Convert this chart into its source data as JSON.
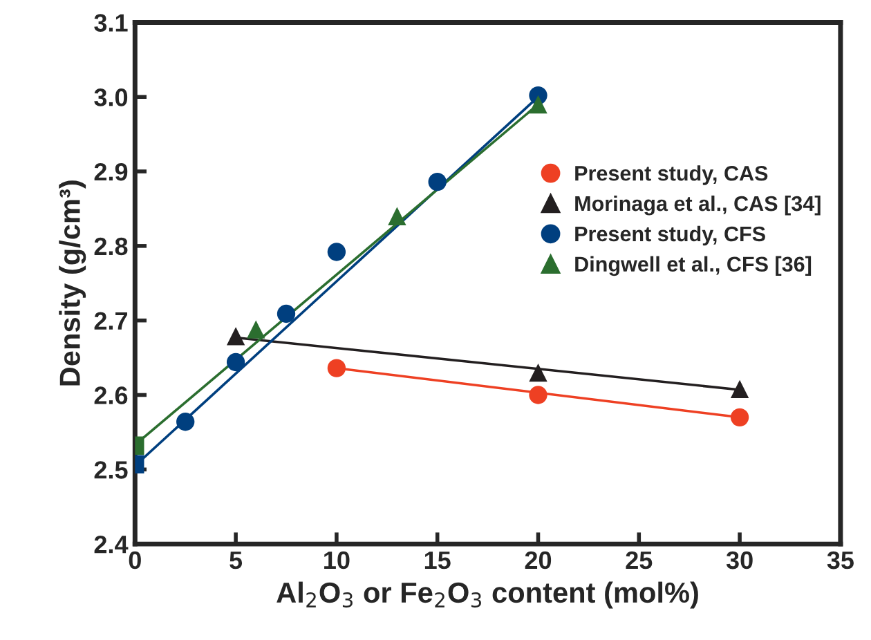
{
  "chart_data": {
    "type": "scatter",
    "xlabel": "Al$_{2}$O$_{3}$ or Fe$_{2}$O$_{3}$ content (mol%)",
    "ylabel": "Density (g/cm³)",
    "xlim": [
      0,
      35
    ],
    "xticks": [
      0,
      5,
      10,
      15,
      20,
      25,
      30,
      35
    ],
    "ylim": [
      2.4,
      3.1
    ],
    "yticks": [
      2.4,
      2.5,
      2.6,
      2.7,
      2.8,
      2.9,
      {
        "value": 3,
        "label": "3.0"
      },
      3.1
    ],
    "grid": false,
    "legend": "right",
    "tick_labels": true,
    "series": [
      {
        "name": "Present study, CAS",
        "color": "#ee4023",
        "marker": "circle",
        "x": [
          10,
          20,
          30
        ],
        "values": [
          2.636,
          2.6,
          2.57
        ]
      },
      {
        "name": "Morinaga et al., CAS [34]",
        "color": "#231f20",
        "marker": "triangle",
        "x": [
          5,
          20,
          30
        ],
        "values": [
          2.679,
          2.63,
          2.608
        ]
      },
      {
        "name": "Present study, CFS",
        "color": "#003f7f",
        "marker": "circle",
        "x": [
          2.5,
          5,
          7.5,
          10,
          15,
          20
        ],
        "values": [
          2.564,
          2.644,
          2.709,
          2.792,
          2.886,
          3.002
        ]
      },
      {
        "name": "Dingwell et al., CFS [36]",
        "color": "#2b6e2f",
        "marker": "triangle",
        "x": [
          6,
          13,
          20
        ],
        "values": [
          2.688,
          2.84,
          2.99
        ]
      },
      {
        "color": "#003f7f",
        "marker": "square",
        "x": [
          0
        ],
        "values": [
          2.507
        ]
      },
      {
        "color": "#2b6e2f",
        "marker": "square",
        "x": [
          0
        ],
        "values": [
          2.532
        ]
      },
      {
        "type": "line",
        "color": "#ee4023",
        "marker": "none",
        "x": [
          10,
          30
        ],
        "values": [
          2.636,
          2.57
        ]
      },
      {
        "type": "line",
        "color": "#231f20",
        "marker": "none",
        "x": [
          5,
          30
        ],
        "values": [
          2.677,
          2.607
        ]
      },
      {
        "type": "line",
        "color": "#003f7f",
        "marker": "none",
        "x": [
          0,
          20
        ],
        "values": [
          2.505,
          3.0
        ]
      },
      {
        "type": "line",
        "color": "#2b6e2f",
        "marker": "none",
        "x": [
          0,
          20
        ],
        "values": [
          2.533,
          2.99
        ]
      }
    ]
  }
}
